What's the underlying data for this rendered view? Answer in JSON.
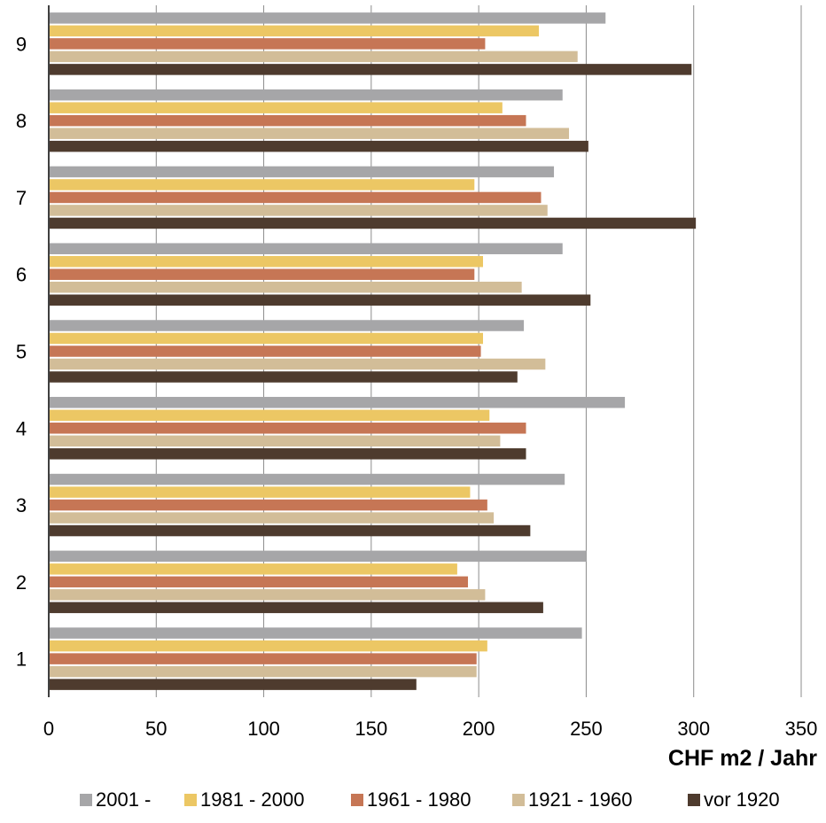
{
  "chart_data": {
    "type": "bar",
    "orientation": "horizontal",
    "categories": [
      "1",
      "2",
      "3",
      "4",
      "5",
      "6",
      "7",
      "8",
      "9"
    ],
    "series": [
      {
        "name": "2001 -",
        "color": "#a6a6a8",
        "values": [
          248,
          250,
          240,
          268,
          221,
          239,
          235,
          239,
          259
        ]
      },
      {
        "name": "1981 - 2000",
        "color": "#ecc764",
        "values": [
          204,
          190,
          196,
          205,
          202,
          202,
          198,
          211,
          228
        ]
      },
      {
        "name": "1961 - 1980",
        "color": "#c67655",
        "values": [
          199,
          195,
          204,
          222,
          201,
          198,
          229,
          222,
          203
        ]
      },
      {
        "name": "1921 - 1960",
        "color": "#d2bd98",
        "values": [
          199,
          203,
          207,
          210,
          231,
          220,
          232,
          242,
          246
        ]
      },
      {
        "name": "vor 1920",
        "color": "#4e3b2e",
        "values": [
          171,
          230,
          224,
          222,
          218,
          252,
          301,
          251,
          299
        ]
      }
    ],
    "xlim": [
      0,
      350
    ],
    "x_ticks": [
      "0",
      "50",
      "100",
      "150",
      "200",
      "250",
      "300",
      "350"
    ],
    "xlabel": "CHF m2 / Jahr",
    "ylabel": "",
    "grid": "vertical",
    "legend_position": "bottom"
  }
}
